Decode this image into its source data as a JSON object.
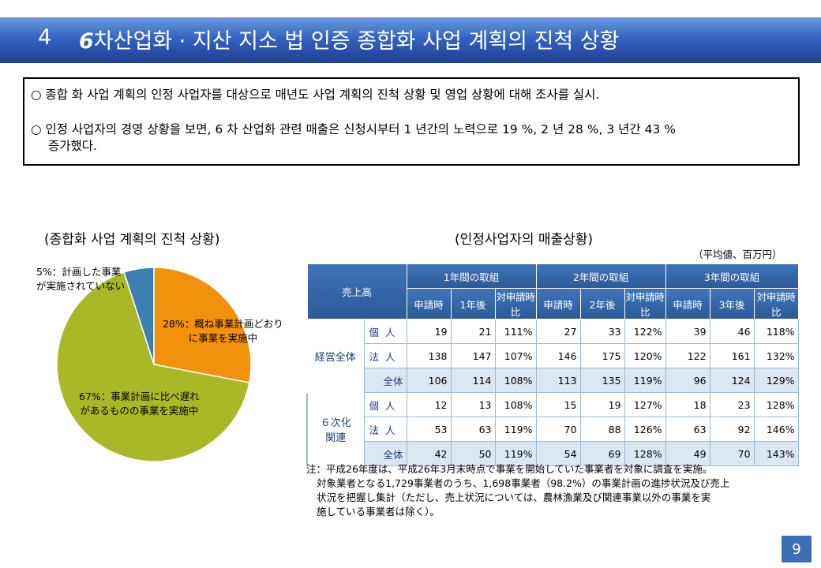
{
  "title": {
    "number": "4",
    "lead": "6",
    "text": "차산업화 · 지산 지소 법 인증 종합화 사업 계획의 진척 상황"
  },
  "summary": {
    "bullet": "○",
    "p1": "종합 화 사업 계획의 인정 사업자를 대상으로 매년도 사업 계획의 진척 상황 및 영업 상황에 대해 조사를 실시.",
    "p2a": "인정 사업자의 경영 상황을 보면, 6 차 산업화 관련 매출은 신청시부터 1 년간의 노력으로 19 %, 2 년 28 %, 3 년간 43 %",
    "p2b": "증가했다."
  },
  "pie_section": {
    "title": "(종합화 사업 계획의 진척 상황)",
    "labels": {
      "l5a": "5%：計画した事業",
      "l5b": "が実施されていない",
      "l28a": "28%：概ね事業計画どおり",
      "l28b": "に事業を実施中",
      "l67a": "67%：事業計画に比べ遅れ",
      "l67b": "があるものの事業を実施中"
    }
  },
  "chart_data": {
    "type": "pie",
    "slices": [
      {
        "label": "計画した事業が実施されていない",
        "value": 5,
        "color": "#3b7fb3"
      },
      {
        "label": "概ね事業計画どおりに事業を実施中",
        "value": 28,
        "color": "#f2920c"
      },
      {
        "label": "事業計画に比べ遅れがあるものの事業を実施中",
        "value": 67,
        "color": "#a9b826"
      }
    ],
    "start": "12 o'clock",
    "direction": "clockwise-from-5%"
  },
  "table_section": {
    "title": "(인정사업자의 매출상황)",
    "unit": "（平均値、百万円）",
    "header": {
      "corner": "売上高",
      "periods": [
        "1年間の取組",
        "2年間の取組",
        "3年間の取組"
      ],
      "sub": [
        "申請時",
        "1年後",
        "対申請時比",
        "申請時",
        "2年後",
        "対申請時比",
        "申請時",
        "3年後",
        "対申請時比"
      ]
    },
    "groups": [
      {
        "name": "経営全体",
        "rows": [
          {
            "label": "個人",
            "values": [
              "19",
              "21",
              "111%",
              "27",
              "33",
              "122%",
              "39",
              "46",
              "118%"
            ]
          },
          {
            "label": "法人",
            "values": [
              "138",
              "147",
              "107%",
              "146",
              "175",
              "120%",
              "122",
              "161",
              "132%"
            ]
          },
          {
            "label": "全体",
            "values": [
              "106",
              "114",
              "108%",
              "113",
              "135",
              "119%",
              "96",
              "124",
              "129%"
            ]
          }
        ]
      },
      {
        "name1": "６次化",
        "name2": "関連",
        "rows": [
          {
            "label": "個人",
            "values": [
              "12",
              "13",
              "108%",
              "15",
              "19",
              "127%",
              "18",
              "23",
              "128%"
            ]
          },
          {
            "label": "法人",
            "values": [
              "53",
              "63",
              "119%",
              "70",
              "88",
              "126%",
              "63",
              "92",
              "146%"
            ]
          },
          {
            "label": "全体",
            "values": [
              "42",
              "50",
              "119%",
              "54",
              "69",
              "128%",
              "49",
              "70",
              "143%"
            ]
          }
        ]
      }
    ]
  },
  "footnote": {
    "l1": "注：平成26年度は、平成26年3月末時点で事業を開始していた事業者を対象に調査を実施。",
    "l2": "対象業者となる1,729事業者のうち、1,698事業者（98.2%）の事業計画の進捗状況及び売上",
    "l3": "状況を把握し集計（ただし、売上状況については、農林漁業及び関連事業以外の事業を実",
    "l4": "施している事業者は除く）。"
  },
  "page_number": "9"
}
